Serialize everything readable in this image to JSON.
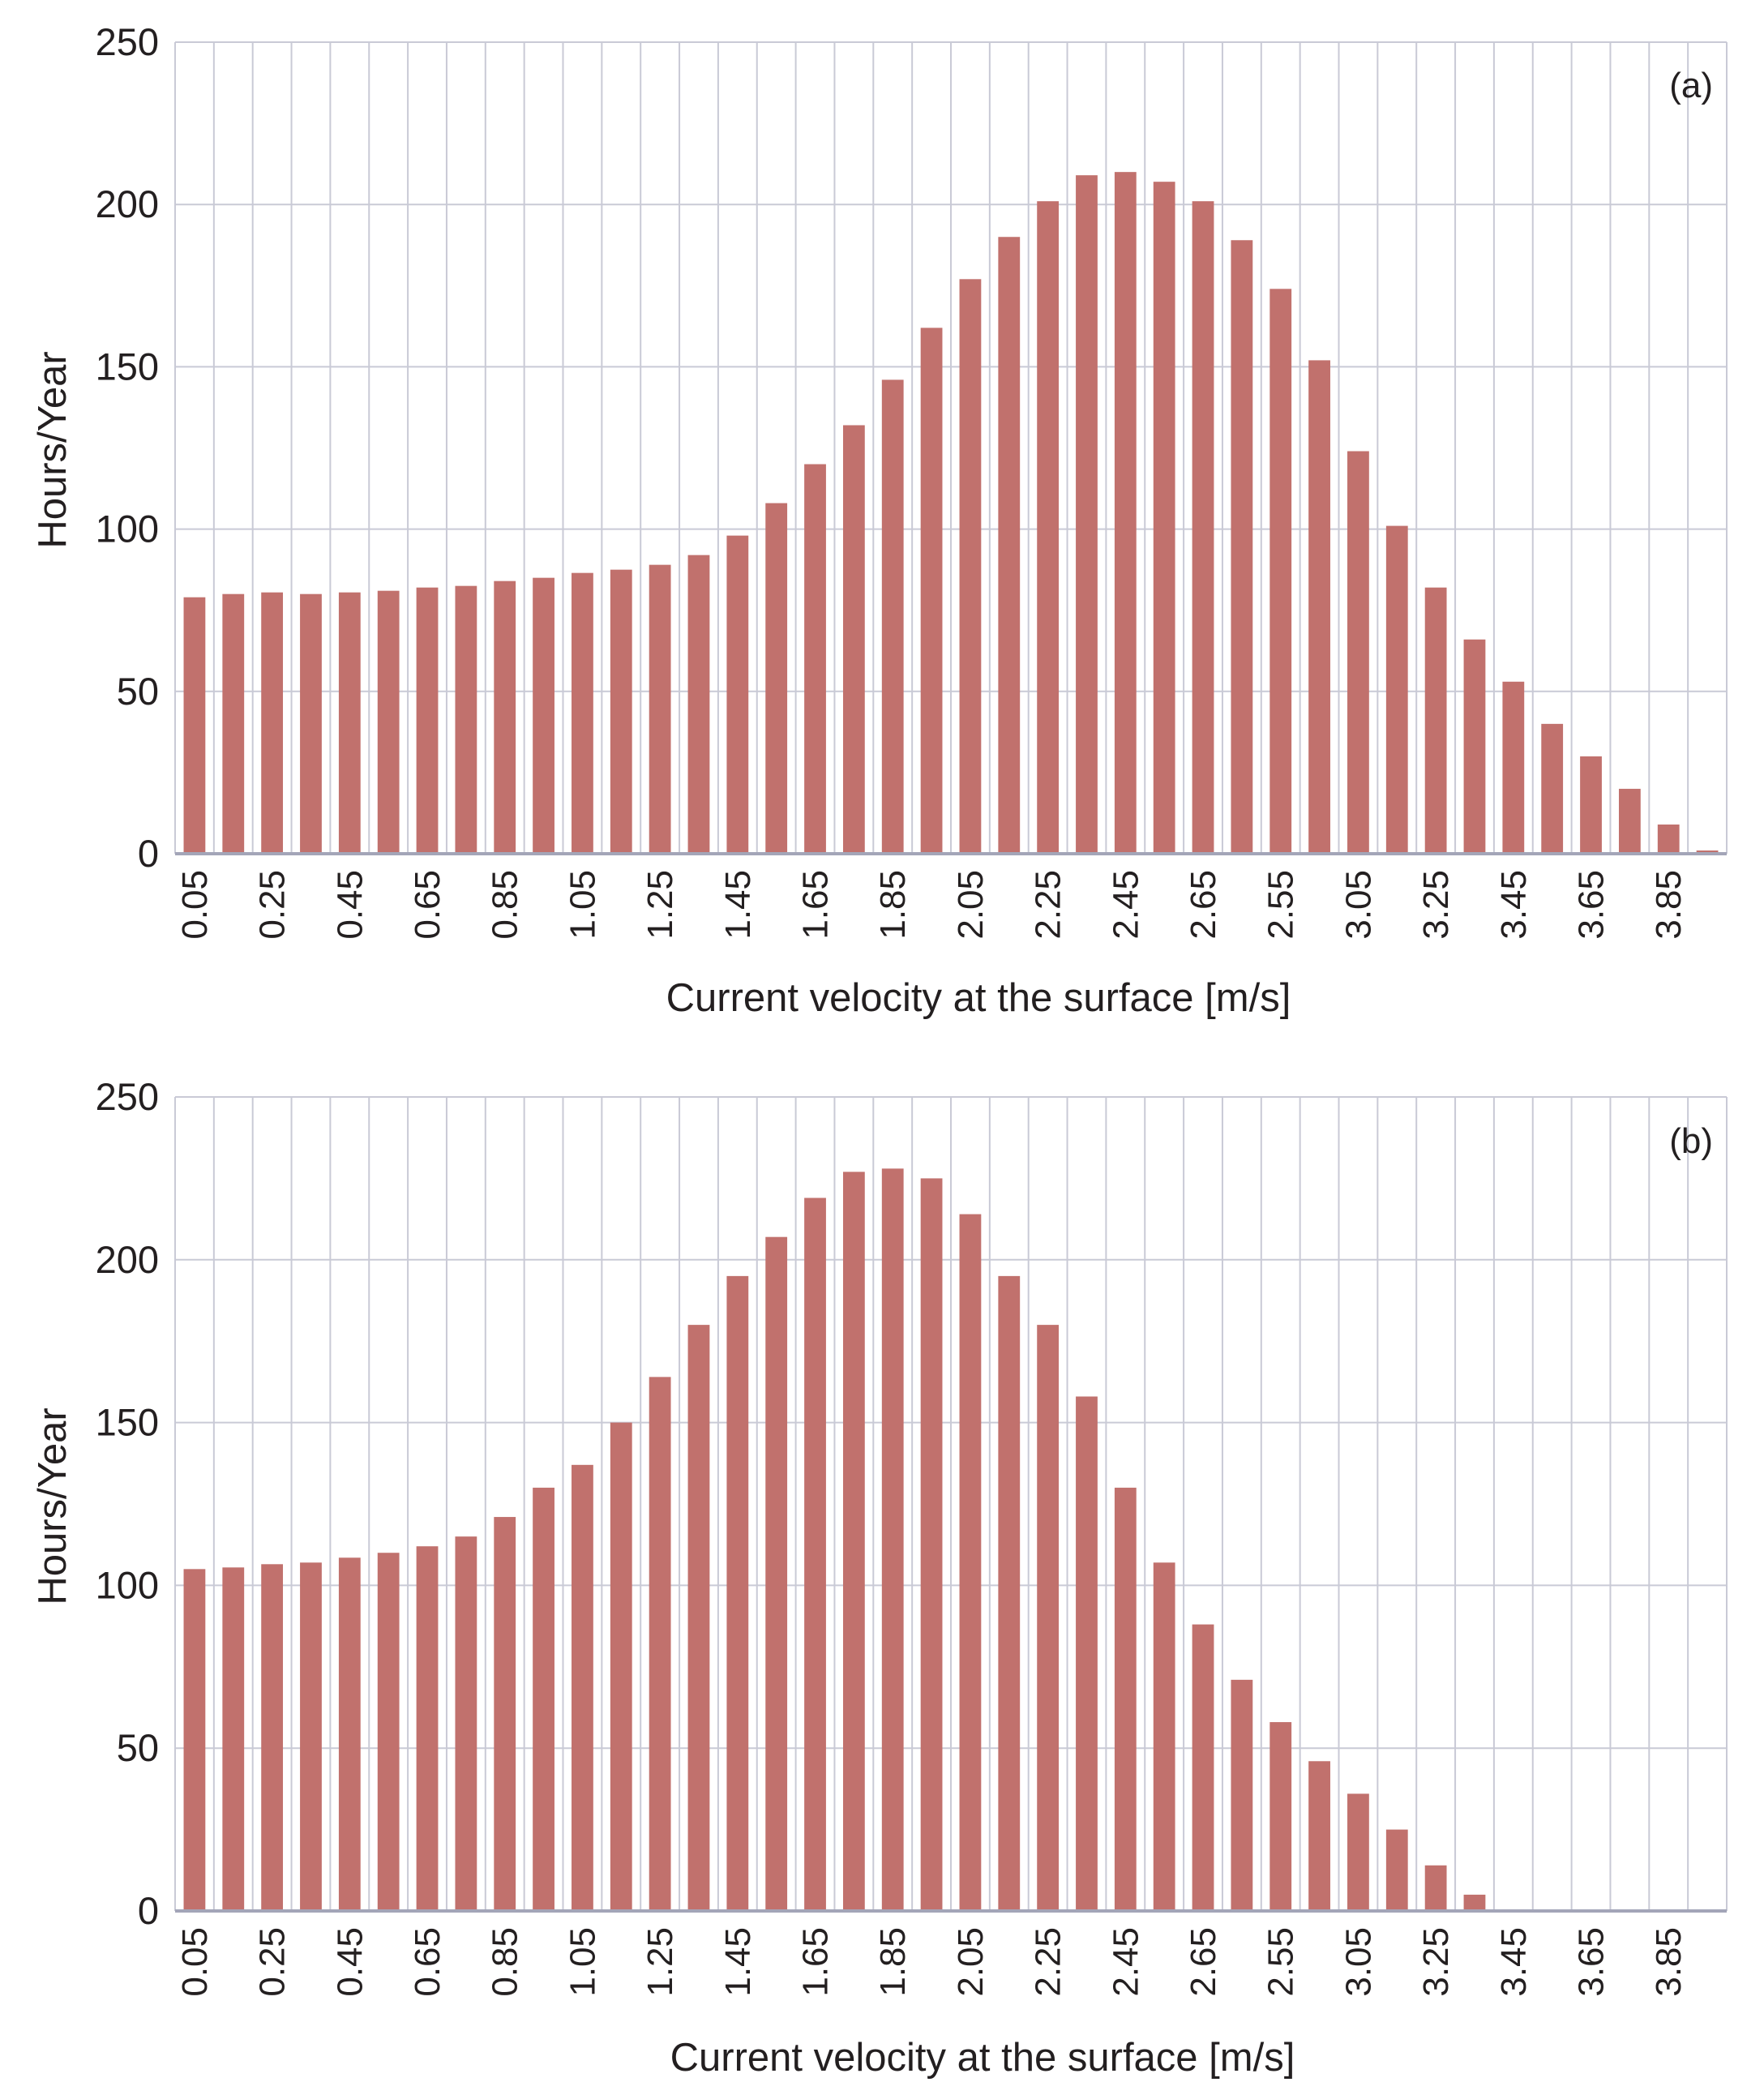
{
  "chart_data": [
    {
      "type": "bar",
      "panel_label": "(a)",
      "ylabel": "Hours/Year",
      "xlabel": "Current velocity at the surface [m/s]",
      "ylim": [
        0,
        250
      ],
      "yticks": [
        "0",
        "50",
        "100",
        "150",
        "200",
        "250"
      ],
      "grid": true,
      "xtick_labels": [
        "0.05",
        "0.25",
        "0.45",
        "0.65",
        "0.85",
        "1.05",
        "1.25",
        "1.45",
        "1.65",
        "1.85",
        "2.05",
        "2.25",
        "2.45",
        "2.65",
        "2.55",
        "3.05",
        "3.25",
        "3.45",
        "3.65",
        "3.85"
      ],
      "bar_color": "#c1716d",
      "values": [
        79,
        80,
        80.5,
        80,
        80.5,
        81,
        82,
        82.5,
        84,
        85,
        86.5,
        87.5,
        89,
        92,
        98,
        108,
        120,
        132,
        146,
        162,
        177,
        190,
        201,
        209,
        210,
        207,
        201,
        189,
        174,
        152,
        124,
        101,
        82,
        66,
        53,
        40,
        30,
        20,
        9,
        1
      ]
    },
    {
      "type": "bar",
      "panel_label": "(b)",
      "ylabel": "Hours/Year",
      "xlabel": "Current velocity at the surface [m/s]",
      "ylim": [
        0,
        250
      ],
      "yticks": [
        "0",
        "50",
        "100",
        "150",
        "200",
        "250"
      ],
      "grid": true,
      "xtick_labels": [
        "0.05",
        "0.25",
        "0.45",
        "0.65",
        "0.85",
        "1.05",
        "1.25",
        "1.45",
        "1.65",
        "1.85",
        "2.05",
        "2.25",
        "2.45",
        "2.65",
        "2.55",
        "3.05",
        "3.25",
        "3.45",
        "3.65",
        "3.85"
      ],
      "bar_color": "#c1716d",
      "values": [
        105,
        105.5,
        106.5,
        107,
        108.5,
        110,
        112,
        115,
        121,
        130,
        137,
        150,
        164,
        180,
        195,
        207,
        219,
        227,
        228,
        225,
        214,
        195,
        180,
        158,
        130,
        107,
        88,
        71,
        58,
        46,
        36,
        25,
        14,
        5,
        0.5,
        0,
        0,
        0,
        0,
        0
      ]
    }
  ]
}
